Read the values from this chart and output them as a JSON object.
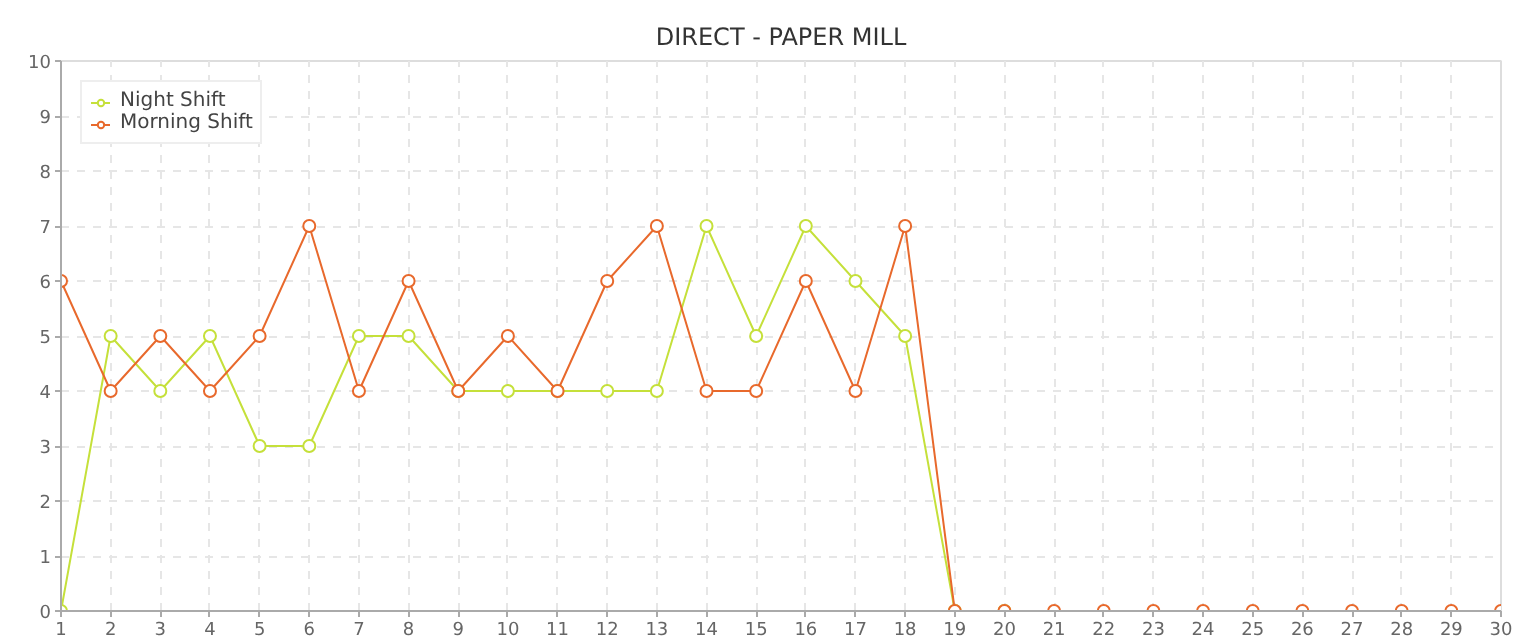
{
  "chart_data": {
    "type": "line",
    "title": "DIRECT - PAPER MILL",
    "x": [
      1,
      2,
      3,
      4,
      5,
      6,
      7,
      8,
      9,
      10,
      11,
      12,
      13,
      14,
      15,
      16,
      17,
      18,
      19,
      20,
      21,
      22,
      23,
      24,
      25,
      26,
      27,
      28,
      29,
      30
    ],
    "series": [
      {
        "name": "Night Shift",
        "color": "#c5e03a",
        "values": [
          0,
          5,
          4,
          5,
          3,
          3,
          5,
          5,
          4,
          4,
          4,
          4,
          4,
          7,
          5,
          7,
          6,
          5,
          0,
          0,
          null,
          null,
          null,
          null,
          null,
          null,
          null,
          null,
          null,
          null
        ]
      },
      {
        "name": "Morning Shift",
        "color": "#e8692c",
        "values": [
          6,
          4,
          5,
          4,
          5,
          7,
          4,
          6,
          4,
          5,
          4,
          6,
          7,
          4,
          4,
          6,
          4,
          7,
          0,
          0,
          0,
          0,
          0,
          0,
          0,
          0,
          0,
          0,
          0,
          0
        ]
      }
    ],
    "xlim": [
      1,
      30
    ],
    "xticks": [
      1,
      2,
      3,
      4,
      5,
      6,
      7,
      8,
      9,
      10,
      11,
      12,
      13,
      14,
      15,
      16,
      17,
      18,
      19,
      20,
      21,
      22,
      23,
      24,
      25,
      26,
      27,
      28,
      29,
      30
    ],
    "ylim": [
      0,
      10
    ],
    "yticks": [
      0,
      1,
      2,
      3,
      4,
      5,
      6,
      7,
      8,
      9,
      10
    ],
    "grid": true,
    "legend": "top left",
    "marker": "circle",
    "line_style": "solid"
  }
}
